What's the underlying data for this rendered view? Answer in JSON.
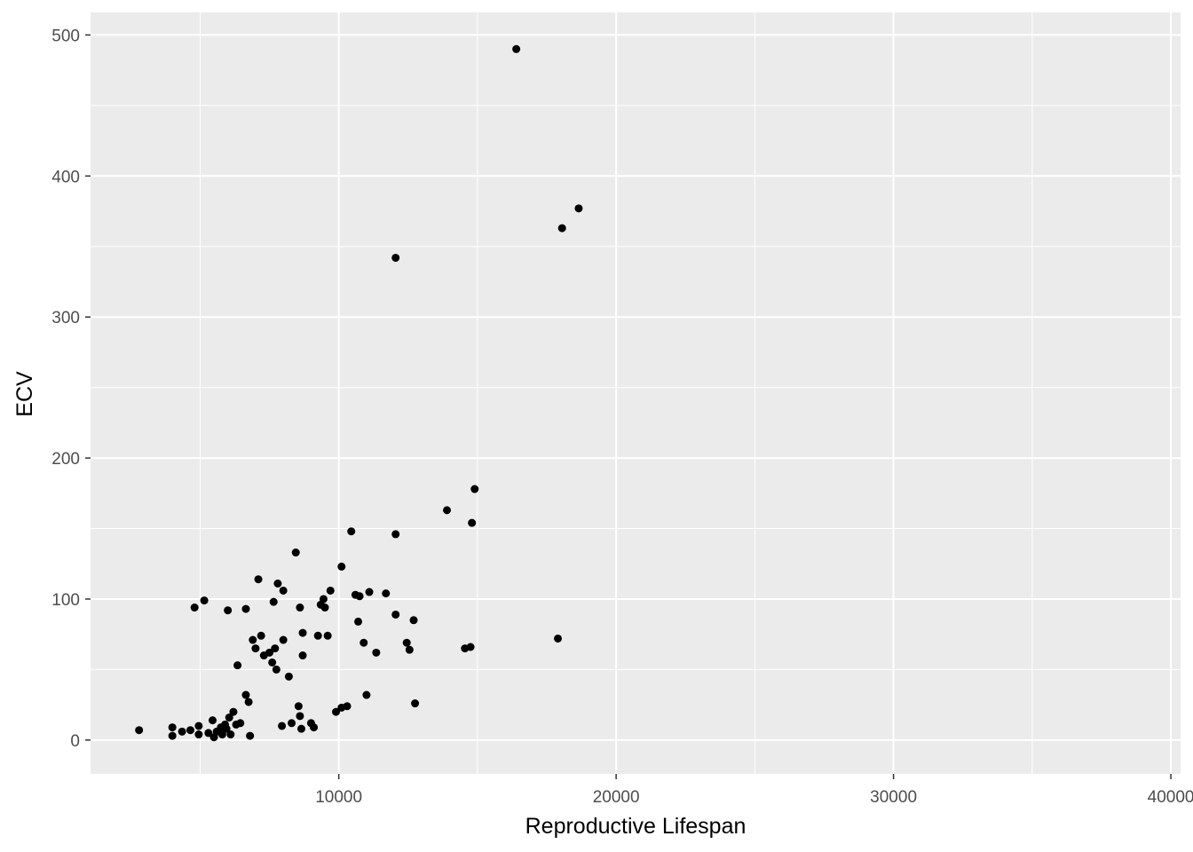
{
  "chart_data": {
    "type": "scatter",
    "title": "",
    "xlabel": "Reproductive Lifespan",
    "ylabel": "ECV",
    "xlim": [
      1050,
      40350
    ],
    "ylim": [
      -24,
      516
    ],
    "x_ticks": [
      10000,
      20000,
      30000,
      40000
    ],
    "x_tick_labels": [
      "10000",
      "20000",
      "30000",
      "40000"
    ],
    "y_ticks": [
      0,
      100,
      200,
      300,
      400,
      500
    ],
    "y_tick_labels": [
      "0",
      "100",
      "200",
      "300",
      "400",
      "500"
    ],
    "grid": true,
    "panel_background": "#ebebeb",
    "grid_color": "#ffffff",
    "point_color": "#000000",
    "points": [
      {
        "x": 2800,
        "y": 7
      },
      {
        "x": 4000,
        "y": 3
      },
      {
        "x": 4000,
        "y": 9
      },
      {
        "x": 4350,
        "y": 6
      },
      {
        "x": 4650,
        "y": 7
      },
      {
        "x": 4800,
        "y": 94
      },
      {
        "x": 4950,
        "y": 4
      },
      {
        "x": 4950,
        "y": 10
      },
      {
        "x": 5150,
        "y": 99
      },
      {
        "x": 5300,
        "y": 5
      },
      {
        "x": 5450,
        "y": 14
      },
      {
        "x": 5500,
        "y": 2
      },
      {
        "x": 5600,
        "y": 6
      },
      {
        "x": 5750,
        "y": 9
      },
      {
        "x": 5800,
        "y": 4
      },
      {
        "x": 5900,
        "y": 11
      },
      {
        "x": 5950,
        "y": 8
      },
      {
        "x": 6000,
        "y": 92
      },
      {
        "x": 6050,
        "y": 16
      },
      {
        "x": 6100,
        "y": 4
      },
      {
        "x": 6200,
        "y": 20
      },
      {
        "x": 6300,
        "y": 11
      },
      {
        "x": 6350,
        "y": 53
      },
      {
        "x": 6450,
        "y": 12
      },
      {
        "x": 6650,
        "y": 93
      },
      {
        "x": 6650,
        "y": 32
      },
      {
        "x": 6750,
        "y": 27
      },
      {
        "x": 6800,
        "y": 3
      },
      {
        "x": 6900,
        "y": 71
      },
      {
        "x": 7000,
        "y": 65
      },
      {
        "x": 7100,
        "y": 114
      },
      {
        "x": 7200,
        "y": 74
      },
      {
        "x": 7300,
        "y": 60
      },
      {
        "x": 7500,
        "y": 62
      },
      {
        "x": 7600,
        "y": 55
      },
      {
        "x": 7650,
        "y": 98
      },
      {
        "x": 7700,
        "y": 65
      },
      {
        "x": 7750,
        "y": 50
      },
      {
        "x": 7800,
        "y": 111
      },
      {
        "x": 7950,
        "y": 10
      },
      {
        "x": 8000,
        "y": 106
      },
      {
        "x": 8000,
        "y": 71
      },
      {
        "x": 8200,
        "y": 45
      },
      {
        "x": 8300,
        "y": 12
      },
      {
        "x": 8450,
        "y": 133
      },
      {
        "x": 8550,
        "y": 24
      },
      {
        "x": 8600,
        "y": 94
      },
      {
        "x": 8600,
        "y": 17
      },
      {
        "x": 8650,
        "y": 8
      },
      {
        "x": 8700,
        "y": 76
      },
      {
        "x": 8700,
        "y": 60
      },
      {
        "x": 9000,
        "y": 12
      },
      {
        "x": 9100,
        "y": 9
      },
      {
        "x": 9250,
        "y": 74
      },
      {
        "x": 9350,
        "y": 96
      },
      {
        "x": 9450,
        "y": 100
      },
      {
        "x": 9500,
        "y": 94
      },
      {
        "x": 9600,
        "y": 74
      },
      {
        "x": 9700,
        "y": 106
      },
      {
        "x": 9900,
        "y": 20
      },
      {
        "x": 10100,
        "y": 123
      },
      {
        "x": 10100,
        "y": 23
      },
      {
        "x": 10300,
        "y": 24
      },
      {
        "x": 10450,
        "y": 148
      },
      {
        "x": 10600,
        "y": 103
      },
      {
        "x": 10700,
        "y": 84
      },
      {
        "x": 10750,
        "y": 102
      },
      {
        "x": 10900,
        "y": 69
      },
      {
        "x": 11000,
        "y": 32
      },
      {
        "x": 11100,
        "y": 105
      },
      {
        "x": 11350,
        "y": 62
      },
      {
        "x": 11700,
        "y": 104
      },
      {
        "x": 12050,
        "y": 342
      },
      {
        "x": 12050,
        "y": 146
      },
      {
        "x": 12050,
        "y": 89
      },
      {
        "x": 12450,
        "y": 69
      },
      {
        "x": 12550,
        "y": 64
      },
      {
        "x": 12700,
        "y": 85
      },
      {
        "x": 12750,
        "y": 26
      },
      {
        "x": 13900,
        "y": 163
      },
      {
        "x": 14550,
        "y": 65
      },
      {
        "x": 14750,
        "y": 66
      },
      {
        "x": 14800,
        "y": 154
      },
      {
        "x": 14900,
        "y": 178
      },
      {
        "x": 16400,
        "y": 490
      },
      {
        "x": 17900,
        "y": 72
      },
      {
        "x": 18050,
        "y": 363
      },
      {
        "x": 18650,
        "y": 377
      }
    ]
  }
}
